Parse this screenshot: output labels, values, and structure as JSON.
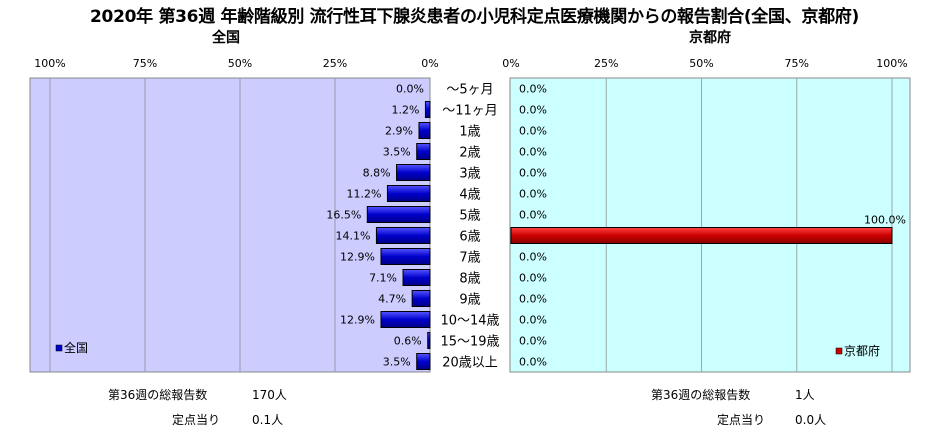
{
  "title": "2020年 第36週 年齢階級別 流行性耳下腺炎患者の小児科定点医療機関からの報告割合(全国、京都府)",
  "left_panel_title": "全国",
  "right_panel_title": "京都府",
  "colors": {
    "plot_background_left": "#ccccff",
    "plot_background_right": "#ccffff",
    "national_bar": "#0000cc",
    "kyoto_bar": "#cc0000"
  },
  "footer": {
    "national": {
      "total_label": "第36週の総報告数",
      "total_value": "170人",
      "per_site_label": "定点当り",
      "per_site_value": "0.1人"
    },
    "kyoto": {
      "total_label": "第36週の総報告数",
      "total_value": "1人",
      "per_site_label": "定点当り",
      "per_site_value": "0.0人"
    }
  },
  "chart_data": {
    "type": "bar",
    "orientation": "horizontal",
    "layout": "back-to-back",
    "categories": [
      "～5ヶ月",
      "～11ヶ月",
      "1歳",
      "2歳",
      "3歳",
      "4歳",
      "5歳",
      "6歳",
      "7歳",
      "8歳",
      "9歳",
      "10～14歳",
      "15～19歳",
      "20歳以上"
    ],
    "xlim": [
      0,
      100
    ],
    "left_axis_ticks": [
      "100%",
      "75%",
      "50%",
      "25%",
      "0%"
    ],
    "right_axis_ticks": [
      "0%",
      "25%",
      "50%",
      "75%",
      "100%"
    ],
    "grid": true,
    "series": [
      {
        "name": "全国",
        "side": "left",
        "legend_position": "bottom-left",
        "values": [
          0.0,
          1.2,
          2.9,
          3.5,
          8.8,
          11.2,
          16.5,
          14.1,
          12.9,
          7.1,
          4.7,
          12.9,
          0.6,
          3.5
        ],
        "labels": [
          "0.0%",
          "1.2%",
          "2.9%",
          "3.5%",
          "8.8%",
          "11.2%",
          "16.5%",
          "14.1%",
          "12.9%",
          "7.1%",
          "4.7%",
          "12.9%",
          "0.6%",
          "3.5%"
        ]
      },
      {
        "name": "京都府",
        "side": "right",
        "legend_position": "bottom-right",
        "values": [
          0.0,
          0.0,
          0.0,
          0.0,
          0.0,
          0.0,
          0.0,
          100.0,
          0.0,
          0.0,
          0.0,
          0.0,
          0.0,
          0.0
        ],
        "labels": [
          "0.0%",
          "0.0%",
          "0.0%",
          "0.0%",
          "0.0%",
          "0.0%",
          "0.0%",
          "100.0%",
          "0.0%",
          "0.0%",
          "0.0%",
          "0.0%",
          "0.0%",
          "0.0%"
        ]
      }
    ]
  }
}
